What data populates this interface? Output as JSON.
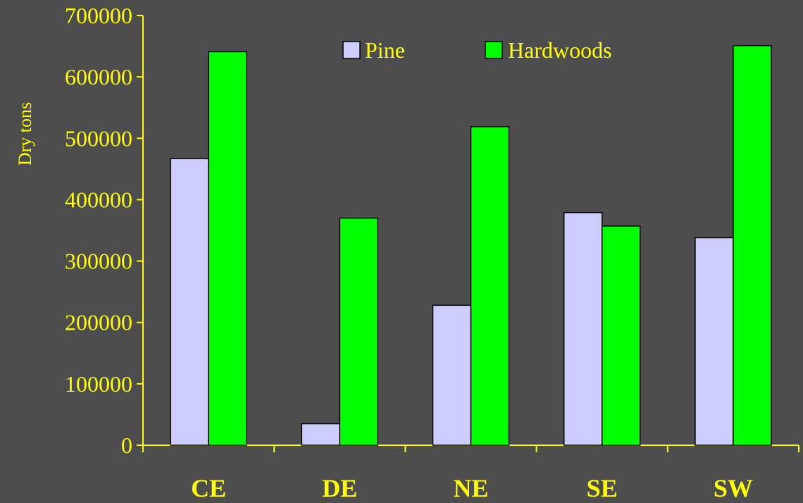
{
  "chart_data": {
    "type": "bar",
    "title": "",
    "xlabel": "",
    "ylabel": "Dry tons",
    "categories": [
      "CE",
      "DE",
      "NE",
      "SE",
      "SW"
    ],
    "series": [
      {
        "name": "Pine",
        "color": "#ccccff",
        "values": [
          467000,
          35000,
          228000,
          379000,
          338000
        ]
      },
      {
        "name": "Hardwoods",
        "color": "#00ff00",
        "values": [
          641000,
          370000,
          519000,
          357000,
          651000
        ]
      }
    ],
    "ylim": [
      0,
      700000
    ],
    "yticks": [
      "0",
      "100000",
      "200000",
      "300000",
      "400000",
      "500000",
      "600000",
      "700000"
    ],
    "grid": false,
    "legend_position": "top-center",
    "axis_color": "#ffff00",
    "text_color": "#ffff00",
    "background": "#4d4d4d"
  }
}
